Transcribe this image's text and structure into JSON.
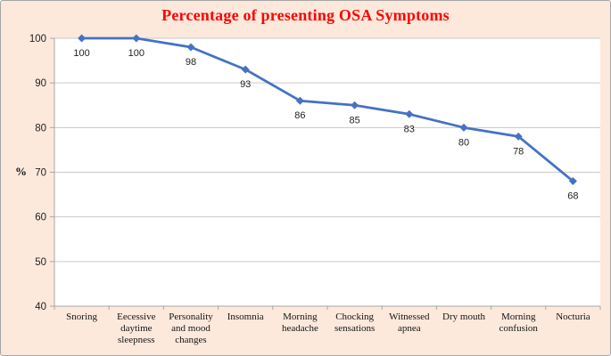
{
  "frame": {
    "background_color": "#fce9dc",
    "border_color": "#a6a6a6",
    "plot_background_color": "#ffffff"
  },
  "chart_data": {
    "type": "line",
    "title": "Percentage of presenting OSA Symptoms",
    "title_color": "#ff0000",
    "categories": [
      "Snoring",
      "Eecessive daytime sleepness",
      "Personality and mood changes",
      "Insomnia",
      "Morning headache",
      "Chocking sensations",
      "Witnessed apnea",
      "Dry mouth",
      "Morning confusion",
      "Nocturia"
    ],
    "values": [
      100,
      100,
      98,
      93,
      86,
      85,
      83,
      80,
      78,
      68
    ],
    "data_labels": [
      "100",
      "100",
      "98",
      "93",
      "86",
      "85",
      "83",
      "80",
      "78",
      "68"
    ],
    "xlabel": "",
    "ylabel": "%",
    "ylim": [
      40,
      100
    ],
    "ytick_step": 10,
    "yticks": [
      "40",
      "50",
      "60",
      "70",
      "80",
      "90",
      "100"
    ],
    "grid": true,
    "legend": "none",
    "line_color": "#4472c4",
    "marker": "diamond",
    "gridline_color": "#c9c9c9",
    "axis_color": "#a6a6a6",
    "label_color": "#1f1f1f"
  }
}
